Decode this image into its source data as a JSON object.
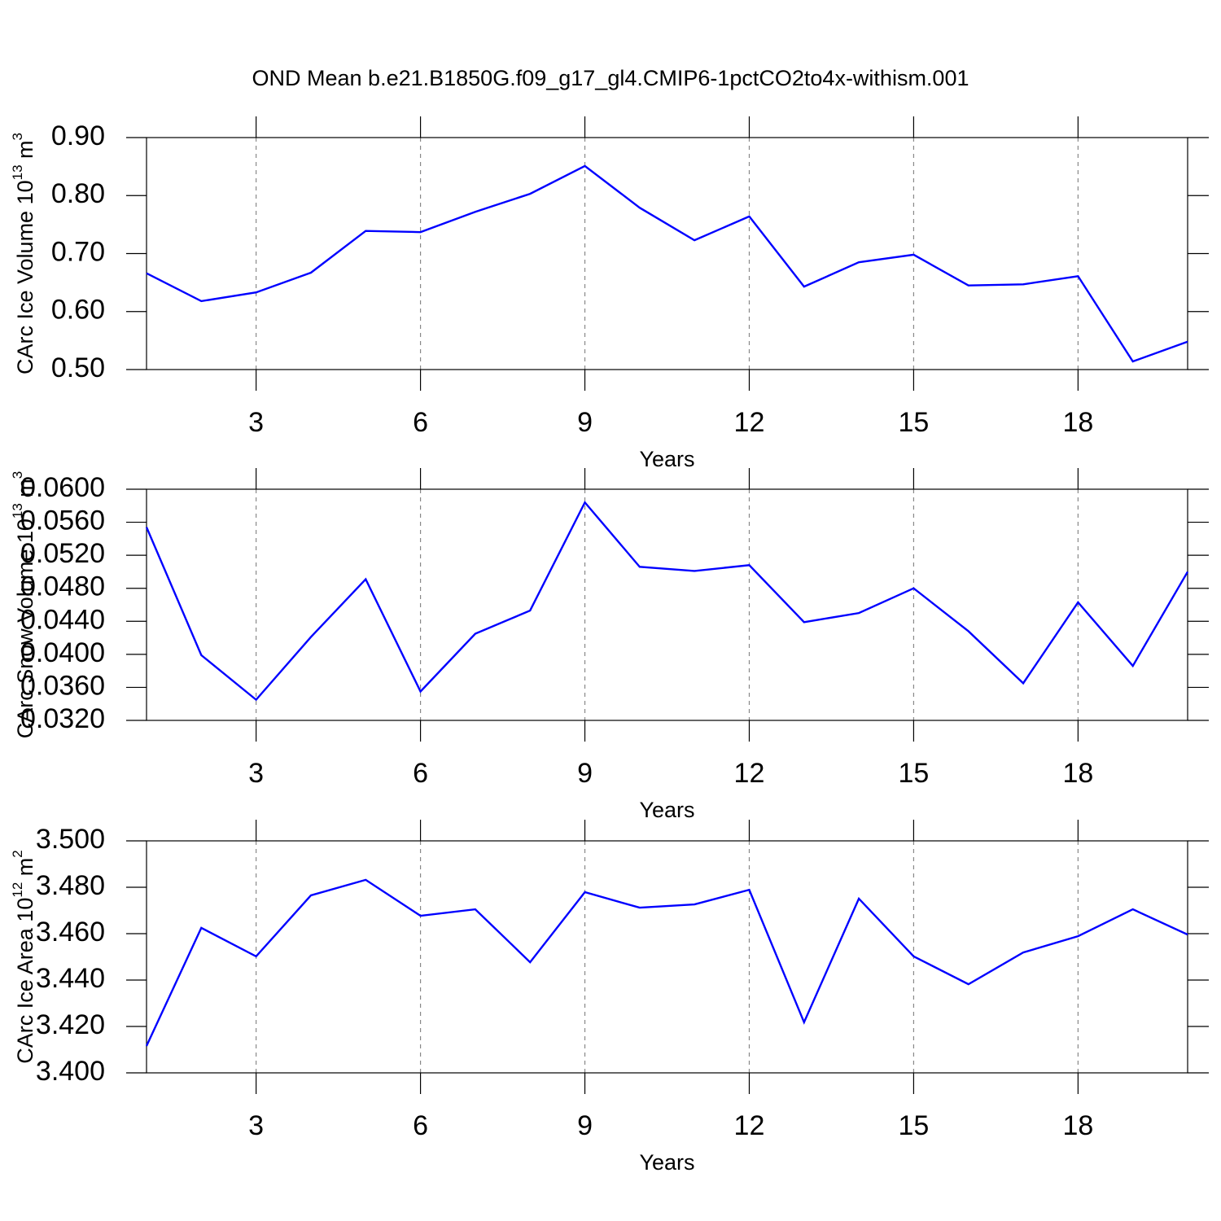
{
  "chart_data": [
    {
      "type": "line",
      "title": "OND Mean b.e21.B1850G.f09_g17_gl4.CMIP6-1pctCO2to4x-withism.001",
      "xlabel": "Years",
      "ylabel": {
        "text": "CArc Ice Volume 10",
        "exponent": "13",
        "unit": " m",
        "unit_exponent": "3"
      },
      "x": [
        1,
        2,
        3,
        4,
        5,
        6,
        7,
        8,
        9,
        10,
        11,
        12,
        13,
        14,
        15,
        16,
        17,
        18,
        19,
        20
      ],
      "series": [
        {
          "color": "#0000ff",
          "values": [
            0.666,
            0.618,
            0.633,
            0.667,
            0.739,
            0.737,
            0.772,
            0.803,
            0.851,
            0.779,
            0.723,
            0.764,
            0.643,
            0.685,
            0.698,
            0.645,
            0.647,
            0.661,
            0.514,
            0.548
          ]
        }
      ],
      "xlim": [
        1,
        20
      ],
      "xticks": [
        3,
        6,
        9,
        12,
        15,
        18
      ],
      "ylim": [
        0.5,
        0.9
      ],
      "yticks": [
        {
          "value": 0.5,
          "label": "0.50"
        },
        {
          "value": 0.6,
          "label": "0.60"
        },
        {
          "value": 0.7,
          "label": "0.70"
        },
        {
          "value": 0.8,
          "label": "0.80"
        },
        {
          "value": 0.9,
          "label": "0.90"
        }
      ],
      "grid": "x"
    },
    {
      "type": "line",
      "xlabel": "Years",
      "ylabel": {
        "text": "CArc Snow Volume 10",
        "exponent": "13",
        "unit": " m",
        "unit_exponent": "3"
      },
      "x": [
        1,
        2,
        3,
        4,
        5,
        6,
        7,
        8,
        9,
        10,
        11,
        12,
        13,
        14,
        15,
        16,
        17,
        18,
        19,
        20
      ],
      "series": [
        {
          "color": "#0000ff",
          "values": [
            0.0554,
            0.0399,
            0.0345,
            0.0421,
            0.0491,
            0.0355,
            0.0425,
            0.0453,
            0.0584,
            0.0506,
            0.0501,
            0.0508,
            0.0439,
            0.045,
            0.048,
            0.0428,
            0.0365,
            0.0463,
            0.0386,
            0.05
          ]
        }
      ],
      "xlim": [
        1,
        20
      ],
      "xticks": [
        3,
        6,
        9,
        12,
        15,
        18
      ],
      "ylim": [
        0.032,
        0.06
      ],
      "yticks": [
        {
          "value": 0.032,
          "label": "0.0320"
        },
        {
          "value": 0.036,
          "label": "0.0360"
        },
        {
          "value": 0.04,
          "label": "0.0400"
        },
        {
          "value": 0.044,
          "label": "0.0440"
        },
        {
          "value": 0.048,
          "label": "0.0480"
        },
        {
          "value": 0.052,
          "label": "0.0520"
        },
        {
          "value": 0.056,
          "label": "0.0560"
        },
        {
          "value": 0.06,
          "label": "0.0600"
        }
      ],
      "grid": "x"
    },
    {
      "type": "line",
      "xlabel": "Years",
      "ylabel": {
        "text": "CArc Ice Area 10",
        "exponent": "12",
        "unit": " m",
        "unit_exponent": "2"
      },
      "x": [
        1,
        2,
        3,
        4,
        5,
        6,
        7,
        8,
        9,
        10,
        11,
        12,
        13,
        14,
        15,
        16,
        17,
        18,
        19,
        20
      ],
      "series": [
        {
          "color": "#0000ff",
          "values": [
            3.4116,
            3.4625,
            3.4502,
            3.4765,
            3.4832,
            3.4677,
            3.4705,
            3.4477,
            3.4779,
            3.4712,
            3.4726,
            3.4789,
            3.4218,
            3.4751,
            3.4502,
            3.4382,
            3.4519,
            3.4589,
            3.4705,
            3.4596
          ]
        }
      ],
      "xlim": [
        1,
        20
      ],
      "xticks": [
        3,
        6,
        9,
        12,
        15,
        18
      ],
      "ylim": [
        3.4,
        3.5
      ],
      "yticks": [
        {
          "value": 3.4,
          "label": "3.400"
        },
        {
          "value": 3.42,
          "label": "3.420"
        },
        {
          "value": 3.44,
          "label": "3.440"
        },
        {
          "value": 3.46,
          "label": "3.460"
        },
        {
          "value": 3.48,
          "label": "3.480"
        },
        {
          "value": 3.5,
          "label": "3.500"
        }
      ],
      "grid": "x"
    }
  ]
}
